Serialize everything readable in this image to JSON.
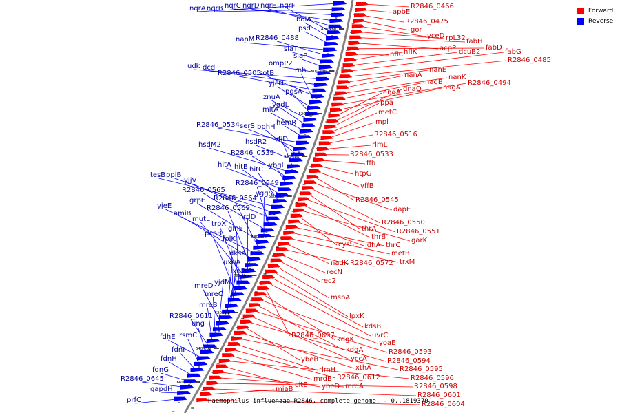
{
  "legend": {
    "forward": {
      "label": "Forward",
      "color": "#ff0000"
    },
    "reverse": {
      "label": "Reverse",
      "color": "#0000ff"
    }
  },
  "caption": "Haemophilus influenzae R2846, complete genome. - 0..1819370",
  "colors": {
    "backbone": "#808080",
    "forward_label": "#cc0000",
    "reverse_label": "#000099",
    "forward_line": "#ff0000",
    "reverse_line": "#0000ff"
  },
  "ticks": [
    "480 kbp",
    "500 kbp",
    "520 kbp",
    "540 kbp",
    "560 kbp",
    "580 kbp",
    "600 kbp",
    "620 kbp",
    "640 kbp",
    "660 kbp"
  ],
  "reverse_genes": [
    "nqrA",
    "nqrB",
    "nqrC",
    "nqrD",
    "nqrE",
    "nqrF",
    "bolA",
    "psd",
    "nanM",
    "R2846_0488",
    "siaT",
    "siaP",
    "ompP2",
    "udk",
    "dcd",
    "R2846_0505",
    "sotB",
    "rnh",
    "yjcD",
    "pgsA",
    "znuA",
    "ygdL",
    "mltA",
    "hemR",
    "R2846_0534",
    "serS",
    "bphH",
    "hsdR2",
    "yfjD",
    "hsdM2",
    "R2846_0539",
    "ybgI",
    "hitA",
    "hitB",
    "hitC",
    "tesB",
    "ppiB",
    "yjjV",
    "R2846_0549",
    "R2846_0565",
    "yggS",
    "grpE",
    "R2846_0564",
    "yjeE",
    "amiB",
    "R2846_0569",
    "nrdD",
    "mutL",
    "trpX",
    "glnE",
    "pcnB",
    "folK",
    "dksA",
    "uxuA",
    "uxuR",
    "mreD",
    "yjdM",
    "mreC",
    "mreB",
    "R2846_0611",
    "ung",
    "fdhE",
    "rsmC",
    "fdnI",
    "fdnH",
    "fdnG",
    "R2846_0645",
    "gapdH",
    "prfC"
  ],
  "forward_genes": [
    "R2846_0466",
    "apbE",
    "R2846_0475",
    "gor",
    "yceD",
    "rpL32",
    "fabH",
    "acpP",
    "fabD",
    "hflC",
    "hflK",
    "dcuB2",
    "fabG",
    "R2846_0485",
    "nanE",
    "nanA",
    "nanK",
    "nagB",
    "R2846_0494",
    "nagA",
    "engA",
    "dnaQ",
    "ppa",
    "metC",
    "mpl",
    "R2846_0516",
    "rlmL",
    "R2846_0533",
    "ffh",
    "htpG",
    "yffB",
    "R2846_0545",
    "dapE",
    "R2846_0550",
    "thrA",
    "R2846_0551",
    "thrB",
    "garK",
    "cysS",
    "ldhA",
    "thrC",
    "metB",
    "trxM",
    "nadK",
    "R2846_0572",
    "recN",
    "rec2",
    "msbA",
    "lpxK",
    "kdsB",
    "uvrC",
    "R2846_0607",
    "kdgK",
    "yoaE",
    "kdgA",
    "R2846_0593",
    "yccA",
    "R2846_0594",
    "ybeB",
    "xthA",
    "R2846_0595",
    "rlmH",
    "R2846_0612",
    "mrdB",
    "R2846_0596",
    "citE",
    "ybeD",
    "mrdA",
    "R2846_0598",
    "R2846_0601",
    "miaB",
    "R2846_0604"
  ]
}
